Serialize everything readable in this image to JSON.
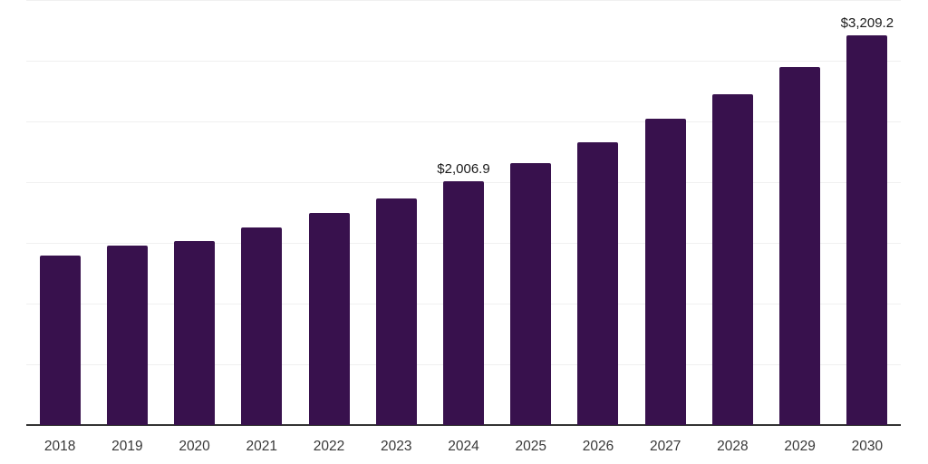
{
  "chart_data": {
    "type": "bar",
    "title": "",
    "xlabel": "",
    "ylabel": "",
    "categories": [
      "2018",
      "2019",
      "2020",
      "2021",
      "2022",
      "2023",
      "2024",
      "2025",
      "2026",
      "2027",
      "2028",
      "2029",
      "2030"
    ],
    "values": [
      1397,
      1476,
      1515,
      1625,
      1750,
      1864,
      2006.9,
      2160,
      2330,
      2521,
      2722,
      2949,
      3209.2
    ],
    "data_labels": {
      "2024": "$2,006.9",
      "2030": "$3,209.2"
    },
    "ylim": [
      0,
      3500
    ],
    "gridline_step": 500,
    "grid": "horizontal",
    "legend": "none",
    "colors": {
      "bar": "#38114d",
      "gridline": "#f0f0f0",
      "axis_line": "#333333",
      "tick_label": "#383838",
      "value_label": "#1a1a1a",
      "background": "#ffffff"
    }
  }
}
